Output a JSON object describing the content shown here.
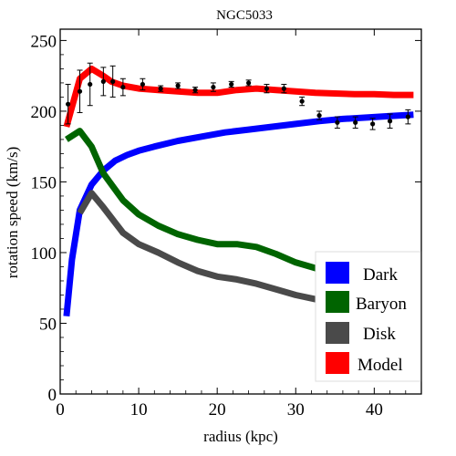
{
  "chart_data": {
    "type": "line",
    "title": "NGC5033",
    "xlabel": "radius (kpc)",
    "ylabel": "rotation speed (km/s)",
    "xlim": [
      0,
      46
    ],
    "ylim": [
      0,
      258
    ],
    "x_ticks": [
      0,
      10,
      20,
      30,
      40
    ],
    "y_ticks": [
      0,
      50,
      100,
      150,
      200,
      250
    ],
    "grid": false,
    "legend": {
      "placement": "bottom-right",
      "entries": [
        "Dark",
        "Baryon",
        "Disk",
        "Model"
      ]
    },
    "colors": {
      "Dark": "#0000ff",
      "Baryon": "#006400",
      "Disk": "#4a4a4a",
      "Model": "#ff0000",
      "points": "#000000"
    },
    "series": [
      {
        "name": "Dark",
        "x": [
          0.8,
          1.5,
          2.5,
          4,
          5.5,
          7,
          8.5,
          10,
          12,
          15,
          18,
          21,
          24,
          27,
          30,
          33,
          36,
          39,
          42,
          45
        ],
        "values": [
          55,
          95,
          130,
          148,
          158,
          165,
          169,
          172,
          175,
          179,
          182,
          185,
          187,
          189,
          191,
          193,
          194.5,
          195.5,
          196.5,
          197.5
        ]
      },
      {
        "name": "Baryon",
        "x": [
          0.8,
          2.5,
          4,
          5.5,
          8,
          10,
          12.5,
          15,
          17.5,
          20,
          22.5,
          25,
          27.5,
          30,
          32.5,
          35,
          37.5,
          40,
          42.5,
          45
        ],
        "values": [
          180,
          186,
          175,
          156,
          137,
          127,
          119,
          113,
          109,
          106,
          106,
          104,
          99,
          93,
          89,
          85,
          82,
          80,
          78,
          76
        ]
      },
      {
        "name": "Disk",
        "x": [
          2.5,
          4,
          5.5,
          8,
          10,
          12.5,
          15,
          17.5,
          20,
          22.5,
          25,
          27.5,
          30,
          32.5,
          35,
          37.5,
          40,
          42.5,
          45
        ],
        "values": [
          128,
          142,
          132,
          114,
          106,
          100,
          93,
          87,
          83,
          81,
          78,
          74,
          70,
          67,
          64,
          61,
          59,
          57,
          55
        ]
      },
      {
        "name": "Model",
        "x": [
          0.8,
          2.5,
          4,
          5.5,
          6.5,
          8,
          10,
          12.5,
          15,
          17.5,
          20,
          22.5,
          25,
          27.5,
          30,
          32.5,
          35,
          37.5,
          40,
          42.5,
          45
        ],
        "values": [
          189,
          223,
          230,
          225,
          221,
          218,
          216,
          215,
          214,
          213,
          213,
          215,
          216,
          215,
          214,
          213,
          212.5,
          212,
          212,
          211.5,
          211.5
        ]
      }
    ],
    "points": {
      "name": "data",
      "x": [
        1.0,
        2.5,
        3.8,
        5.5,
        6.7,
        8.0,
        10.5,
        12.8,
        15.0,
        17.2,
        19.5,
        21.8,
        24.0,
        26.3,
        28.5,
        30.8,
        33.0,
        35.3,
        37.6,
        39.8,
        42.0,
        44.3
      ],
      "y": [
        205,
        214,
        219,
        221,
        221,
        217,
        219,
        216,
        218,
        215,
        217,
        219,
        220,
        216,
        216,
        207,
        197,
        192,
        192,
        191,
        193,
        196
      ],
      "err": [
        14,
        15,
        15,
        10,
        11,
        6,
        4,
        2,
        2,
        2,
        3,
        2,
        2,
        3,
        3,
        3,
        3,
        4,
        4,
        4,
        5,
        5
      ]
    }
  }
}
